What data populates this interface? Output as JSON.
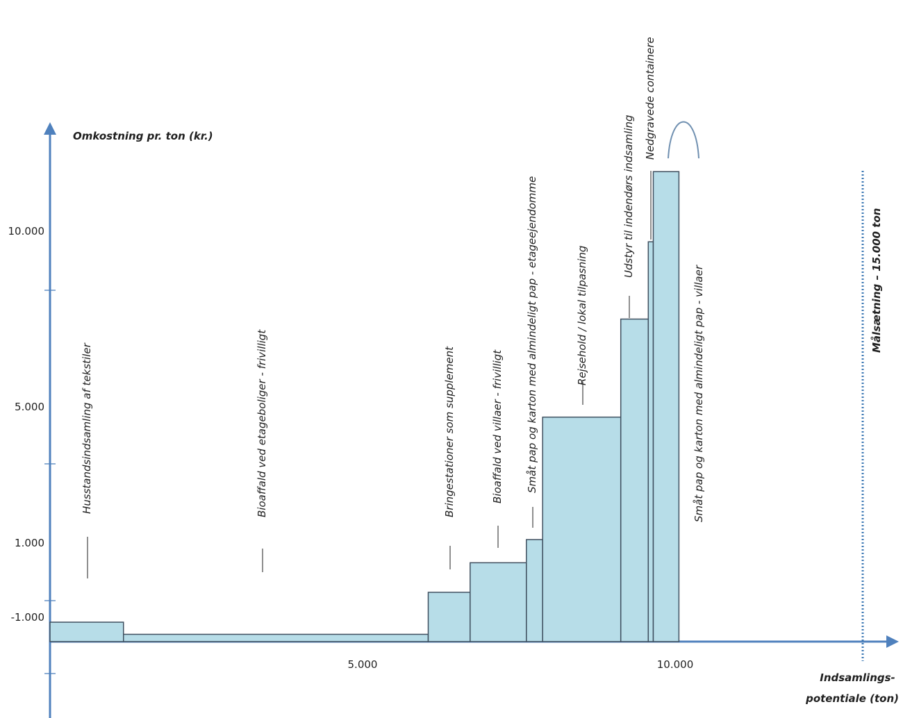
{
  "chart_data": {
    "type": "bar",
    "ylabel": "Omkostning pr. ton (kr.)",
    "xlabel": "Indsamlings-\npotentiale (ton)",
    "x_ticks": [
      {
        "value": 5000,
        "label": "5.000"
      },
      {
        "value": 10000,
        "label": "10.000"
      }
    ],
    "y_ticks": [
      {
        "value": -1000,
        "label": "-1.000"
      },
      {
        "value": 1000,
        "label": "1.000"
      },
      {
        "value": 5000,
        "label": "5.000"
      },
      {
        "value": 10000,
        "label": "10.000"
      }
    ],
    "series": [
      {
        "label": "Husstandsindsamling af tekstiler",
        "x_start": 0,
        "x_end": 1175,
        "value": -800
      },
      {
        "label": "Bioaffald ved etageboliger - frivilligt",
        "x_start": 1175,
        "x_end": 6050,
        "value": -300
      },
      {
        "label": "Bringestationer som supplement",
        "x_start": 6050,
        "x_end": 6720,
        "value": 500
      },
      {
        "label": "Bioaffald ved villaer - frivilligt",
        "x_start": 6720,
        "x_end": 7620,
        "value": 800
      },
      {
        "label": "Småt pap og karton med almindeligt pap - etageejendomme",
        "x_start": 7620,
        "x_end": 7880,
        "value": 1100
      },
      {
        "label": "Rejsehold / lokal tilpasning",
        "x_start": 7880,
        "x_end": 9130,
        "value": 4700
      },
      {
        "label": "Udstyr til indendørs indsamling",
        "x_start": 9130,
        "x_end": 9570,
        "value": 7500
      },
      {
        "label": "Nedgravede containere",
        "x_start": 9570,
        "x_end": 9650,
        "value": 9700
      },
      {
        "label": "Småt pap og karton med almindeligt pap - villaer",
        "x_start": 9650,
        "x_end": 10060,
        "value": 11700
      }
    ],
    "target": {
      "value": 13000,
      "label": "Målsætning – 15.000 ton"
    },
    "colors": {
      "bar_fill": "#b7dde8",
      "axis": "#4f81bd",
      "target": "#3c78b4"
    }
  }
}
